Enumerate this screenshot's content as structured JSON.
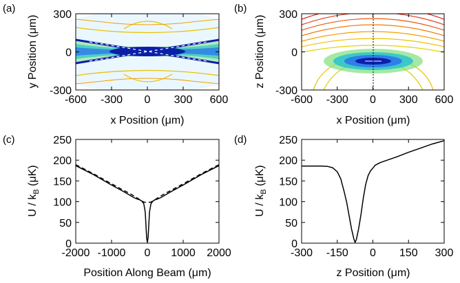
{
  "chart_data": [
    {
      "panel": "(a)",
      "type": "heatmap",
      "xlabel": "x Position (μm)",
      "ylabel": "y Position (μm)",
      "xlim": [
        -600,
        600
      ],
      "ylim": [
        -300,
        300
      ],
      "xticks": [
        "-600",
        "-300",
        "0",
        "300",
        "600"
      ],
      "yticks": [
        "-300",
        "0",
        "300"
      ],
      "description_values": {
        "crossing_angle_deg": 10,
        "center_x": 0,
        "center_y": 0
      }
    },
    {
      "panel": "(b)",
      "type": "heatmap",
      "xlabel": "x Position (μm)",
      "ylabel": "z Position (μm)",
      "xlim": [
        -600,
        600
      ],
      "ylim": [
        -300,
        300
      ],
      "xticks": [
        "-600",
        "-300",
        "0",
        "300",
        "600"
      ],
      "yticks": [
        "-300",
        "0",
        "300"
      ],
      "description_values": {
        "minimum_x": 0,
        "minimum_z": -75
      }
    },
    {
      "panel": "(c)",
      "type": "line",
      "xlabel": "Position Along Beam (μm)",
      "ylabel": "U / k",
      "ylabel_sub": "B",
      "ylabel_unit": " (μK)",
      "xlim": [
        -2000,
        2000
      ],
      "ylim": [
        0,
        250
      ],
      "xticks": [
        "-2000",
        "-1000",
        "0",
        "1000",
        "2000"
      ],
      "yticks": [
        "0",
        "50",
        "100",
        "150",
        "200",
        "250"
      ],
      "series": [
        {
          "style": "solid",
          "x": [
            -2000,
            -1500,
            -1000,
            -700,
            -500,
            -400,
            -300,
            -200,
            -150,
            -100,
            -60,
            -40,
            -20,
            0,
            20,
            40,
            60,
            100,
            150,
            200,
            300,
            400,
            500,
            700,
            1000,
            1500,
            2000
          ],
          "y": [
            187,
            165,
            140,
            126,
            116,
            111,
            107,
            104,
            101,
            95,
            75,
            45,
            12,
            2,
            12,
            45,
            75,
            95,
            101,
            104,
            107,
            111,
            116,
            126,
            140,
            165,
            187
          ]
        },
        {
          "style": "dashed",
          "x": [
            -2000,
            -1500,
            -1000,
            -700,
            -500,
            -300,
            -200,
            -100,
            0,
            100,
            200,
            300,
            500,
            700,
            1000,
            1500,
            2000
          ],
          "y": [
            189,
            167,
            143,
            129,
            120,
            110,
            104,
            99,
            98,
            99,
            104,
            110,
            120,
            129,
            143,
            167,
            189
          ]
        }
      ]
    },
    {
      "panel": "(d)",
      "type": "line",
      "xlabel": "z Position (μm)",
      "ylabel": "U / k",
      "ylabel_sub": "B",
      "ylabel_unit": " (μK)",
      "xlim": [
        -300,
        300
      ],
      "ylim": [
        0,
        250
      ],
      "xticks": [
        "-300",
        "-150",
        "0",
        "150",
        "300"
      ],
      "yticks": [
        "0",
        "50",
        "100",
        "150",
        "200",
        "250"
      ],
      "series": [
        {
          "style": "solid",
          "x": [
            -300,
            -220,
            -190,
            -170,
            -150,
            -135,
            -120,
            -110,
            -100,
            -90,
            -80,
            -75,
            -70,
            -60,
            -50,
            -40,
            -30,
            -20,
            -10,
            0,
            10,
            30,
            60,
            100,
            150,
            200,
            250,
            300
          ],
          "y": [
            186,
            186,
            185,
            182,
            172,
            155,
            122,
            97,
            66,
            35,
            10,
            2,
            8,
            35,
            70,
            110,
            142,
            163,
            174,
            181,
            188,
            194,
            200,
            208,
            219,
            229,
            239,
            247
          ]
        }
      ]
    }
  ]
}
